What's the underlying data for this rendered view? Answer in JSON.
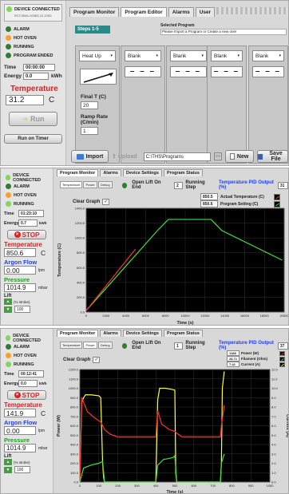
{
  "s1": {
    "status": [
      {
        "label": "DEVICE CONNECTED",
        "color": "#7ed957"
      },
      {
        "label": "ALARM",
        "color": "#2f7d2f"
      },
      {
        "label": "HOT OVEN",
        "color": "#ffa020"
      },
      {
        "label": "RUNNING",
        "color": "#2f7d2f"
      },
      {
        "label": "PROGRAM ENDED",
        "color": "#2f7d2f"
      }
    ],
    "device_id": "RCT-BW1-02363-12-1200",
    "time_label": "Time",
    "time_value": "00:00:00",
    "energy_label": "Energy",
    "energy_value": "0.0",
    "energy_unit": "kWh",
    "temp_label": "Temperature",
    "temp_value": "31.2",
    "temp_unit": "C",
    "run_label": "Run",
    "run_on_timer": "Run on Timer",
    "tabs": [
      "Program Monitor",
      "Program Editor",
      "Alarms",
      "User"
    ],
    "steps_badge": "Steps 1-5",
    "selected_program_title": "Selected Program",
    "selected_program_hint": "Please Import a Program or Create a new one!",
    "step1": {
      "name": "Heat Up",
      "final_label": "Final T (C)",
      "final_value": "20",
      "ramp_label": "Ramp Rate (C/min)",
      "ramp_value": "1"
    },
    "blank_label": "Blank",
    "blank_dash": "– – –",
    "import": "Import",
    "upload": "Upload",
    "path": "C:\\THS\\Programs",
    "new": "New",
    "save": "Save File"
  },
  "s2": {
    "status": [
      {
        "label": "DEVICE CONNECTED",
        "color": "#7ed957"
      },
      {
        "label": "ALARM",
        "color": "#2f7d2f"
      },
      {
        "label": "HOT OVEN",
        "color": "#ffa020"
      },
      {
        "label": "RUNNING",
        "color": "#7ed957"
      }
    ],
    "time_label": "Time",
    "time_value": "01:23:10",
    "energy_label": "Energy",
    "energy_value": "0.7",
    "energy_unit": "kWh",
    "stop": "STOP",
    "temp_label": "Temperature",
    "temp_value": "850.6",
    "temp_unit": "C",
    "argon_label": "Argon Flow",
    "argon_value": "0.00",
    "argon_unit": "lpm",
    "pressure_label": "Pressure",
    "pressure_value": "1014.9",
    "pressure_unit": "mbar",
    "lift_label": "Lift",
    "lift_unit": "(% stroke)",
    "lift_value": "100",
    "tabs": [
      "Program Monitor",
      "Alarms",
      "Device Settings",
      "Program Status"
    ],
    "subtabs": [
      "Temperature",
      "Power",
      "Debug"
    ],
    "open_lift": "Open Lift On End",
    "running_step_value": "2",
    "running_step_label": "Running Step",
    "pid_label": "Temperature PID Output (%)",
    "pid_value": "31",
    "clear_graph": "Clear Graph",
    "legend": [
      {
        "label": "Actual Temperature (C)",
        "value": "850.5",
        "color": "#ff3030"
      },
      {
        "label": "Program Setting (C)",
        "value": "850.6",
        "color": "#40e040"
      }
    ]
  },
  "chart2": {
    "type": "line",
    "xlabel": "Time (s)",
    "ylabel": "Temperature (C)",
    "xlim": [
      0,
      20000
    ],
    "ylim": [
      0,
      1400
    ],
    "xticks": [
      "0",
      "2000",
      "4000",
      "6000",
      "8000",
      "10000",
      "12000",
      "14000",
      "16000",
      "18000",
      "20000"
    ],
    "yticks": [
      "0.0",
      "200.0",
      "400.0",
      "600.0",
      "800.0",
      "1000.0",
      "1200.0",
      "1400.0"
    ],
    "series": [
      {
        "name": "Program Setting (C)",
        "color": "#40e040",
        "x": [
          0,
          7200,
          8300,
          12600,
          13700,
          19800
        ],
        "y": [
          20,
          1100,
          1250,
          1250,
          1100,
          700
        ]
      },
      {
        "name": "Actual Temperature (C)",
        "color": "#ff3030",
        "x": [
          0,
          4980
        ],
        "y": [
          20,
          850
        ]
      }
    ]
  },
  "s3": {
    "status": [
      {
        "label": "DEVICE CONNECTED",
        "color": "#7ed957"
      },
      {
        "label": "ALARM",
        "color": "#2f7d2f"
      },
      {
        "label": "HOT OVEN",
        "color": "#ffa020"
      },
      {
        "label": "RUNNING",
        "color": "#7ed957"
      }
    ],
    "time_label": "Time",
    "time_value": "00:12:41",
    "energy_label": "Energy",
    "energy_value": "0.0",
    "energy_unit": "kWh",
    "stop": "STOP",
    "temp_label": "Temperature",
    "temp_value": "141.9",
    "temp_unit": "C",
    "argon_label": "Argon Flow",
    "argon_value": "0.00",
    "argon_unit": "lpm",
    "pressure_label": "Pressure",
    "pressure_value": "1014.9",
    "pressure_unit": "mbar",
    "lift_label": "Lift",
    "lift_unit": "(% stroke)",
    "lift_value": "100",
    "tabs": [
      "Program Monitor",
      "Alarms",
      "Device Settings",
      "Program Status"
    ],
    "subtabs": [
      "Temperature",
      "Power",
      "Debug"
    ],
    "open_lift": "Open Lift On End",
    "running_step_value": "1",
    "running_step_label": "Running Step",
    "pid_label": "Temperature PID Output (%)",
    "pid_value": "37",
    "clear_graph": "Clear Graph",
    "legend": [
      {
        "label": "Power (W)",
        "value": "1188",
        "color": "#ff3030"
      },
      {
        "label": "Filament (Ohm)",
        "value": "28.71",
        "color": "#40e040"
      },
      {
        "label": "Current (A)",
        "value": "7.42",
        "color": "#ffff30"
      }
    ]
  },
  "chart3": {
    "type": "line",
    "xlabel": "Time (s)",
    "ylabel": "Power (W)",
    "ylabel2": "Current (A)",
    "xlim": [
      0,
      1000
    ],
    "ylim": [
      0,
      1200
    ],
    "xticks": [
      "0",
      "100",
      "200",
      "300",
      "400",
      "500",
      "600",
      "700",
      "800",
      "900",
      "1000"
    ],
    "yticks": [
      "0.0",
      "100.0",
      "200.0",
      "300.0",
      "400.0",
      "500.0",
      "600.0",
      "700.0",
      "800.0",
      "900.0",
      "1000.0",
      "1100.0",
      "1200.0"
    ],
    "yticks2": [
      "0.0",
      "1.0",
      "2.0",
      "3.0",
      "4.0",
      "5.0",
      "6.0",
      "7.0",
      "8.0",
      "9.0",
      "10.0",
      "11.0",
      "12.0"
    ],
    "series": [
      {
        "name": "Current (A)",
        "color": "#ffff30",
        "x": [
          0,
          10,
          20,
          30,
          60,
          100,
          110,
          120,
          125,
          130,
          400,
          410,
          420,
          450,
          480,
          500,
          505,
          510,
          740,
          745,
          750,
          760
        ],
        "y": [
          0,
          850,
          900,
          930,
          930,
          920,
          900,
          200,
          50,
          0,
          0,
          880,
          1000,
          1000,
          990,
          980,
          100,
          0,
          0,
          200,
          1000,
          1180
        ]
      },
      {
        "name": "Power (W)",
        "color": "#ff3030",
        "x": [
          0,
          10,
          40,
          80,
          110,
          130,
          160,
          200,
          300,
          400,
          410,
          430,
          470,
          500,
          510,
          540,
          600,
          700,
          740,
          745,
          760
        ],
        "y": [
          0,
          900,
          750,
          680,
          640,
          560,
          510,
          480,
          480,
          480,
          760,
          620,
          560,
          540,
          520,
          480,
          480,
          480,
          480,
          600,
          820
        ]
      },
      {
        "name": "Filament (Ohm)",
        "color": "#40e040",
        "x": [
          0,
          20,
          60,
          100,
          120,
          130,
          400,
          410,
          440,
          490,
          500,
          510,
          740,
          745,
          760
        ],
        "y": [
          0,
          150,
          180,
          200,
          220,
          0,
          0,
          180,
          240,
          260,
          280,
          0,
          0,
          200,
          300
        ]
      }
    ]
  }
}
